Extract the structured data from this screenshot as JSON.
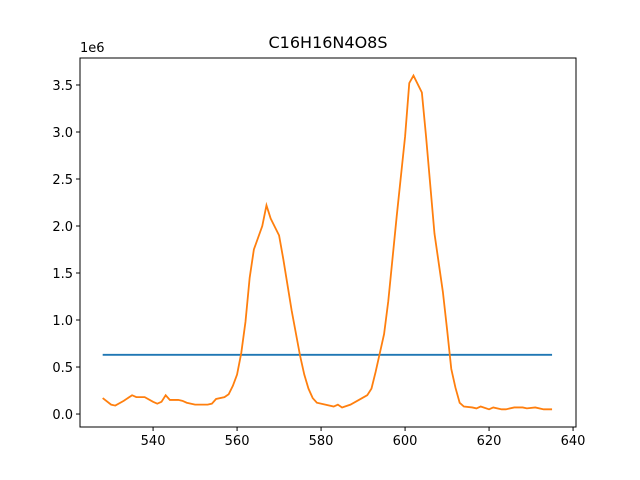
{
  "chart_data": {
    "type": "line",
    "title": "C16H16N4O8S",
    "y_offset_label": "1e6",
    "xlim": [
      522.6,
      640.7
    ],
    "ylim": [
      -0.138,
      3.787
    ],
    "xticks": [
      540,
      560,
      580,
      600,
      620,
      640
    ],
    "yticks": [
      {
        "value": 0,
        "label": "0.0"
      },
      0.5,
      {
        "value": 1,
        "label": "1.0"
      },
      1.5,
      {
        "value": 2,
        "label": "2.0"
      },
      2.5,
      {
        "value": 3,
        "label": "3.0"
      },
      3.5
    ],
    "series": [
      {
        "color": "#1f77b4",
        "x": [
          528,
          635
        ],
        "values": [
          0.63,
          0.63
        ]
      },
      {
        "color": "#ff7f0e",
        "x": [
          528,
          530,
          531,
          533,
          535,
          536,
          538,
          540,
          541,
          542,
          543,
          544,
          546,
          547,
          548,
          550,
          553,
          554,
          555,
          557,
          558,
          559,
          560,
          561,
          562,
          563,
          564,
          566,
          567,
          568,
          570,
          571,
          573,
          575,
          576,
          577,
          578,
          579,
          581,
          583,
          584,
          585,
          587,
          589,
          591,
          592,
          593,
          595,
          596,
          598,
          600,
          601,
          602,
          604,
          605,
          607,
          609,
          610,
          611,
          612,
          613,
          614,
          616,
          617,
          618,
          620,
          621,
          623,
          624,
          626,
          628,
          629,
          631,
          633,
          635
        ],
        "values": [
          0.17,
          0.1,
          0.09,
          0.14,
          0.2,
          0.18,
          0.18,
          0.13,
          0.11,
          0.13,
          0.2,
          0.15,
          0.15,
          0.14,
          0.12,
          0.1,
          0.1,
          0.11,
          0.16,
          0.18,
          0.21,
          0.3,
          0.42,
          0.65,
          0.98,
          1.45,
          1.75,
          2.0,
          2.22,
          2.08,
          1.9,
          1.65,
          1.1,
          0.62,
          0.42,
          0.27,
          0.17,
          0.12,
          0.1,
          0.08,
          0.1,
          0.07,
          0.1,
          0.15,
          0.2,
          0.27,
          0.45,
          0.85,
          1.2,
          2.1,
          2.95,
          3.52,
          3.6,
          3.42,
          2.95,
          1.92,
          1.3,
          0.9,
          0.48,
          0.28,
          0.12,
          0.08,
          0.07,
          0.06,
          0.08,
          0.05,
          0.07,
          0.05,
          0.05,
          0.07,
          0.07,
          0.06,
          0.07,
          0.05,
          0.05
        ]
      }
    ]
  }
}
